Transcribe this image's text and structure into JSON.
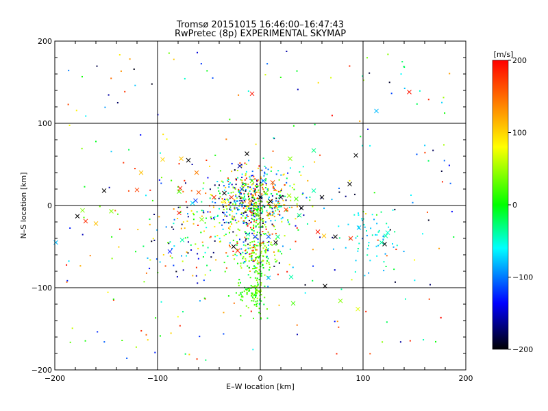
{
  "chart_data": {
    "type": "scatter",
    "title": "Tromsø 20151015 16:46:00–16:47:43",
    "subtitle": "RwPretec (8p) EXPERIMENTAL SKYMAP",
    "xlabel": "E–W location [km]",
    "ylabel": "N–S location [km]",
    "xlim": [
      -200,
      200
    ],
    "ylim": [
      -200,
      200
    ],
    "xticks": [
      -200,
      -100,
      0,
      100,
      200
    ],
    "yticks": [
      -200,
      -100,
      0,
      100,
      200
    ],
    "xtick_labels": [
      "−200",
      "−100",
      "0",
      "100",
      "200"
    ],
    "ytick_labels": [
      "−200",
      "−100",
      "0",
      "100",
      "200"
    ],
    "grid": true,
    "colorbar": {
      "label": "[m/s]",
      "range": [
        -200,
        200
      ],
      "ticks": [
        200,
        100,
        0,
        -100,
        -200
      ],
      "tick_labels": [
        "200",
        "100",
        "0",
        "−100",
        "−200"
      ],
      "colormap": [
        "#000000",
        "#0000ff",
        "#00ffff",
        "#00ff00",
        "#ffff00",
        "#ff8000",
        "#ff0000"
      ]
    },
    "markers": [
      {
        "x": 145,
        "y": 138,
        "v": 190
      },
      {
        "x": -8,
        "y": 136,
        "v": 190
      },
      {
        "x": 113,
        "y": 115,
        "v": -80
      },
      {
        "x": -70,
        "y": 55,
        "v": -200
      },
      {
        "x": -13,
        "y": 63,
        "v": -200
      },
      {
        "x": 93,
        "y": 61,
        "v": -200
      },
      {
        "x": -95,
        "y": 56,
        "v": 100
      },
      {
        "x": -77,
        "y": 57,
        "v": 110
      },
      {
        "x": 29,
        "y": 57,
        "v": 40
      },
      {
        "x": 52,
        "y": 67,
        "v": -30
      },
      {
        "x": -116,
        "y": 40,
        "v": 110
      },
      {
        "x": -62,
        "y": 40,
        "v": 140
      },
      {
        "x": -20,
        "y": 48,
        "v": -160
      },
      {
        "x": -152,
        "y": 18,
        "v": -200
      },
      {
        "x": -120,
        "y": 19,
        "v": 170
      },
      {
        "x": -79,
        "y": 17,
        "v": 20
      },
      {
        "x": -60,
        "y": 16,
        "v": 160
      },
      {
        "x": 87,
        "y": 26,
        "v": -200
      },
      {
        "x": -78,
        "y": 21,
        "v": 190
      },
      {
        "x": -178,
        "y": -13,
        "v": -200
      },
      {
        "x": -170,
        "y": -19,
        "v": 180
      },
      {
        "x": -160,
        "y": -22,
        "v": 110
      },
      {
        "x": -173,
        "y": -6,
        "v": 40
      },
      {
        "x": -145,
        "y": -7,
        "v": 40
      },
      {
        "x": -199,
        "y": -45,
        "v": -80
      },
      {
        "x": -79,
        "y": -9,
        "v": 190
      },
      {
        "x": -66,
        "y": 3,
        "v": -70
      },
      {
        "x": -57,
        "y": -17,
        "v": 40
      },
      {
        "x": -63,
        "y": 6,
        "v": -120
      },
      {
        "x": -76,
        "y": -42,
        "v": -40
      },
      {
        "x": -88,
        "y": -56,
        "v": -130
      },
      {
        "x": -45,
        "y": 10,
        "v": 180
      },
      {
        "x": -35,
        "y": 15,
        "v": -200
      },
      {
        "x": -28,
        "y": 10,
        "v": 170
      },
      {
        "x": -35,
        "y": 5,
        "v": 80
      },
      {
        "x": -18,
        "y": 20,
        "v": -110
      },
      {
        "x": -10,
        "y": 5,
        "v": 150
      },
      {
        "x": -5,
        "y": 0,
        "v": 60
      },
      {
        "x": 0,
        "y": 10,
        "v": -200
      },
      {
        "x": 5,
        "y": 15,
        "v": 30
      },
      {
        "x": 10,
        "y": 5,
        "v": -200
      },
      {
        "x": 15,
        "y": 0,
        "v": 100
      },
      {
        "x": 20,
        "y": 10,
        "v": -190
      },
      {
        "x": 25,
        "y": -5,
        "v": 170
      },
      {
        "x": 28,
        "y": 12,
        "v": 50
      },
      {
        "x": 35,
        "y": 8,
        "v": 20
      },
      {
        "x": 40,
        "y": -3,
        "v": -200
      },
      {
        "x": 52,
        "y": 18,
        "v": -40
      },
      {
        "x": 38,
        "y": -12,
        "v": -30
      },
      {
        "x": 8,
        "y": -10,
        "v": 130
      },
      {
        "x": -3,
        "y": -12,
        "v": 40
      },
      {
        "x": 3,
        "y": 30,
        "v": -100
      },
      {
        "x": 12,
        "y": 28,
        "v": 160
      },
      {
        "x": -8,
        "y": 30,
        "v": 20
      },
      {
        "x": 60,
        "y": 10,
        "v": -200
      },
      {
        "x": 56,
        "y": -32,
        "v": 190
      },
      {
        "x": 62,
        "y": -37,
        "v": 110
      },
      {
        "x": 73,
        "y": -38,
        "v": -200
      },
      {
        "x": 88,
        "y": -40,
        "v": 180
      },
      {
        "x": 96,
        "y": -27,
        "v": -80
      },
      {
        "x": 122,
        "y": -37,
        "v": -40
      },
      {
        "x": 124,
        "y": -33,
        "v": -50
      },
      {
        "x": 118,
        "y": -45,
        "v": -40
      },
      {
        "x": 121,
        "y": -47,
        "v": -200
      },
      {
        "x": -26,
        "y": -50,
        "v": -200
      },
      {
        "x": -22,
        "y": -55,
        "v": 180
      },
      {
        "x": -12,
        "y": -35,
        "v": -30
      },
      {
        "x": -5,
        "y": -38,
        "v": -120
      },
      {
        "x": 8,
        "y": -38,
        "v": -110
      },
      {
        "x": 17,
        "y": -38,
        "v": -30
      },
      {
        "x": 15,
        "y": -45,
        "v": -200
      },
      {
        "x": 30,
        "y": -87,
        "v": -40
      },
      {
        "x": 8,
        "y": -88,
        "v": -80
      },
      {
        "x": 63,
        "y": -98,
        "v": -200
      },
      {
        "x": 32,
        "y": -119,
        "v": 20
      },
      {
        "x": 78,
        "y": -116,
        "v": 40
      },
      {
        "x": 95,
        "y": -126,
        "v": 70
      }
    ],
    "cloud_centers": [
      {
        "x": -10,
        "y": 5,
        "r": 40,
        "n": 600
      },
      {
        "x": -5,
        "y": -60,
        "r": 20,
        "n": 130
      },
      {
        "x": -10,
        "y": -105,
        "r": 12,
        "n": 70
      },
      {
        "x": 110,
        "y": -40,
        "r": 35,
        "n": 60
      },
      {
        "x": -60,
        "y": -40,
        "r": 60,
        "n": 120
      }
    ],
    "sparse_points": 240
  }
}
